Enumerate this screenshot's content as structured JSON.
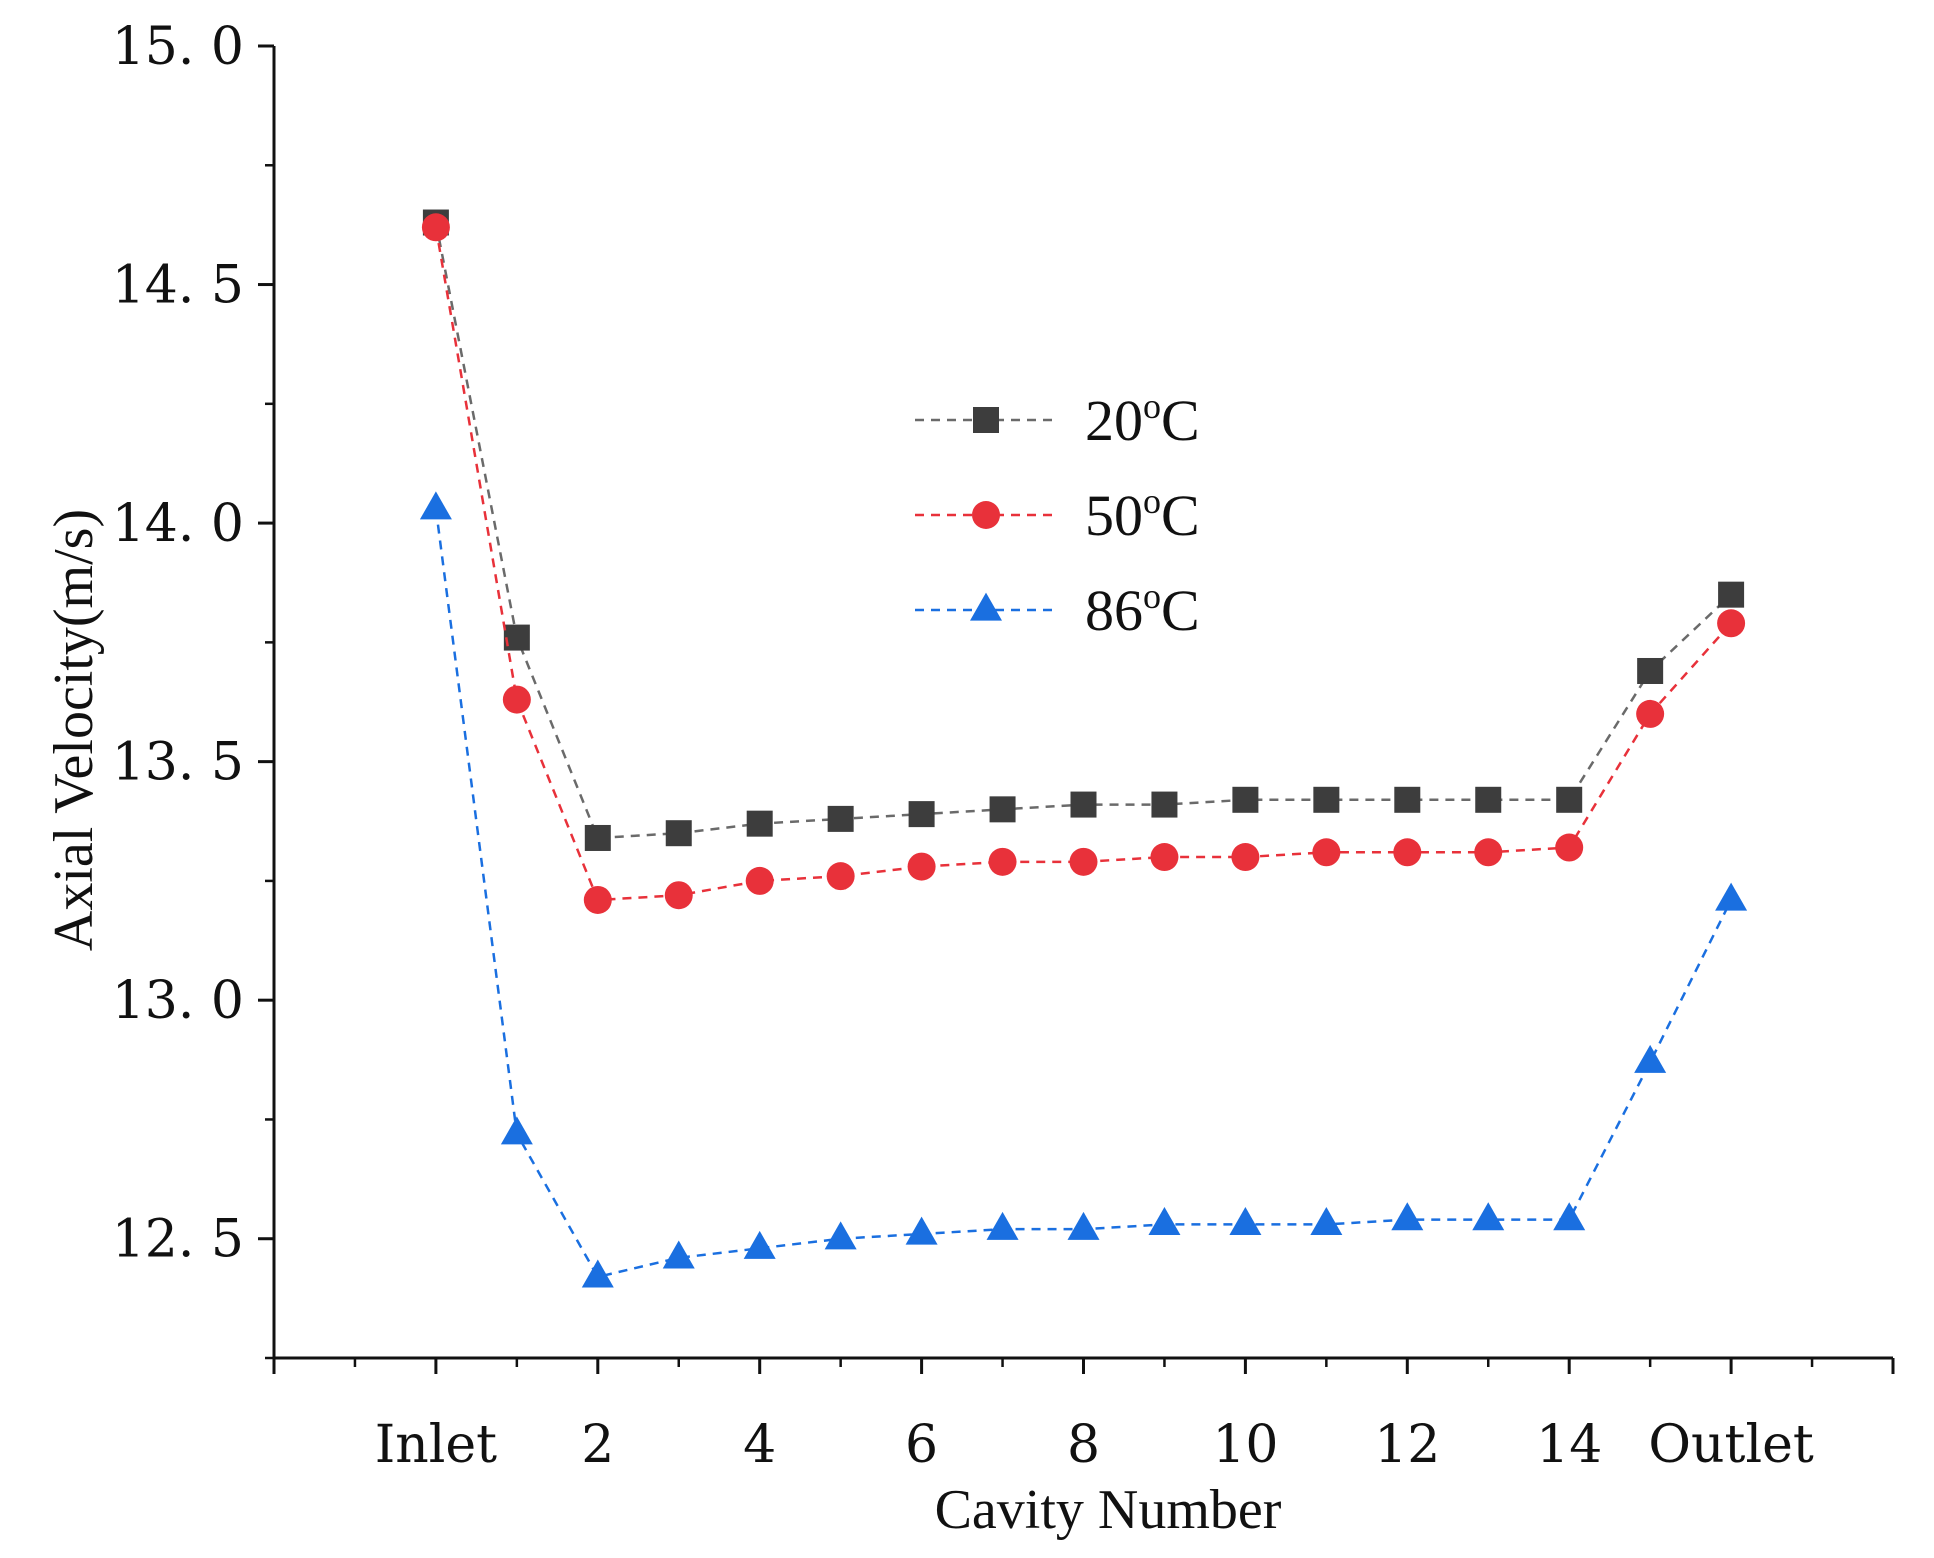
{
  "chart_data": {
    "type": "line",
    "xlabel": "Cavity Number",
    "ylabel": "Axial Velocity(m/s)",
    "xlim": [
      -2,
      18
    ],
    "ylim": [
      12.25,
      15.0
    ],
    "x_ticks": [
      {
        "x": 0,
        "label": "Inlet"
      },
      {
        "x": 2,
        "label": "2"
      },
      {
        "x": 4,
        "label": "4"
      },
      {
        "x": 6,
        "label": "6"
      },
      {
        "x": 8,
        "label": "8"
      },
      {
        "x": 10,
        "label": "10"
      },
      {
        "x": 12,
        "label": "12"
      },
      {
        "x": 14,
        "label": "14"
      },
      {
        "x": 16,
        "label": "Outlet"
      }
    ],
    "y_ticks": [
      {
        "y": 12.5,
        "label": "12. 5"
      },
      {
        "y": 13.0,
        "label": "13. 0"
      },
      {
        "y": 13.5,
        "label": "13. 5"
      },
      {
        "y": 14.0,
        "label": "14. 0"
      },
      {
        "y": 14.5,
        "label": "14. 5"
      },
      {
        "y": 15.0,
        "label": "15. 0"
      }
    ],
    "x": [
      0,
      1,
      2,
      3,
      4,
      5,
      6,
      7,
      8,
      9,
      10,
      11,
      12,
      13,
      14,
      15,
      16
    ],
    "series": [
      {
        "name": "20",
        "name_sup": "o",
        "name_suffix": "C",
        "color": "#3d3d3d",
        "line_color": "#6a6a6a",
        "marker": "square",
        "values": [
          14.63,
          13.76,
          13.34,
          13.35,
          13.37,
          13.38,
          13.39,
          13.4,
          13.41,
          13.41,
          13.42,
          13.42,
          13.42,
          13.42,
          13.42,
          13.69,
          13.85
        ]
      },
      {
        "name": "50",
        "name_sup": "o",
        "name_suffix": "C",
        "color": "#e8313a",
        "line_color": "#e8313a",
        "marker": "circle",
        "values": [
          14.62,
          13.63,
          13.21,
          13.22,
          13.25,
          13.26,
          13.28,
          13.29,
          13.29,
          13.3,
          13.3,
          13.31,
          13.31,
          13.31,
          13.32,
          13.6,
          13.79
        ]
      },
      {
        "name": "86",
        "name_sup": "o",
        "name_suffix": "C",
        "color": "#1a6fe0",
        "line_color": "#1a6fe0",
        "marker": "triangle",
        "values": [
          14.03,
          12.72,
          12.42,
          12.46,
          12.48,
          12.5,
          12.51,
          12.52,
          12.52,
          12.53,
          12.53,
          12.53,
          12.54,
          12.54,
          12.54,
          12.87,
          13.21
        ]
      }
    ],
    "legend_position": "center"
  }
}
